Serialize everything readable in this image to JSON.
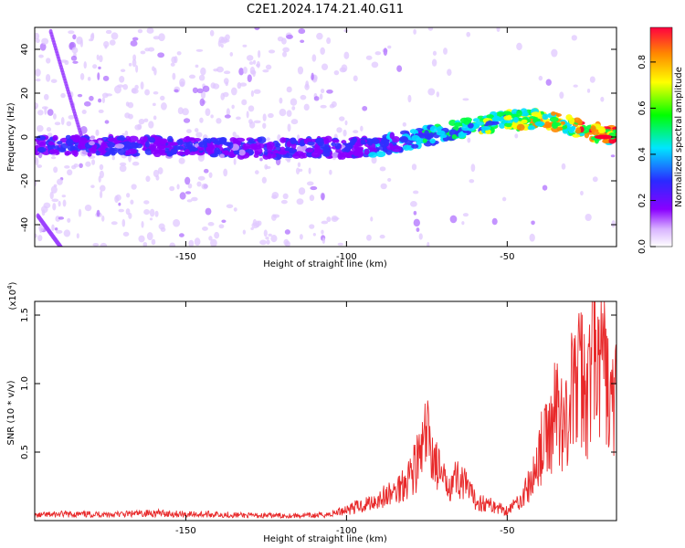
{
  "title": "C2E1.2024.174.21.40.G11",
  "colors": {
    "snr_line": "#e8292a",
    "axis": "#000000"
  },
  "chart_data": [
    {
      "type": "heatmap",
      "xlabel": "Height of straight line (km)",
      "ylabel": "Frequency (Hz)",
      "xlim": [
        -197,
        -16
      ],
      "ylim": [
        -50,
        50
      ],
      "x_ticks": [
        -150,
        -100,
        -50
      ],
      "y_ticks": [
        -40,
        -20,
        0,
        20,
        40
      ],
      "colorbar": {
        "label": "Normalized spectral amplitude",
        "range": [
          0,
          0.95
        ],
        "ticks": [
          0.0,
          0.2,
          0.4,
          0.6,
          0.8
        ]
      },
      "ridge_track": {
        "x": [
          -197,
          -180,
          -160,
          -140,
          -120,
          -100,
          -90,
          -80,
          -70,
          -60,
          -50,
          -40,
          -30,
          -20,
          -16
        ],
        "freq": [
          -4,
          -4,
          -4,
          -5,
          -5,
          -5,
          -4,
          -1,
          2,
          5,
          8,
          8,
          5,
          1,
          0
        ]
      },
      "colorscale": "rainbow"
    },
    {
      "type": "line",
      "xlabel": "Height of straight line (km)",
      "ylabel": "SNR (10 * v/v)",
      "y_exponent_label": "(x10",
      "y_exponent_power": "4",
      "y_exponent_close": ")",
      "xlim": [
        -197,
        -16
      ],
      "ylim": [
        0,
        1.6
      ],
      "x_ticks": [
        -150,
        -100,
        -50
      ],
      "y_ticks": [
        0.5,
        1.0,
        1.5
      ],
      "y_tick_labels": [
        "0.5",
        "1.0",
        "1.5"
      ],
      "series": [
        {
          "x": [
            -197,
            -190,
            -180,
            -170,
            -160,
            -150,
            -140,
            -130,
            -120,
            -110,
            -105,
            -100,
            -95,
            -90,
            -85,
            -80,
            -77,
            -75,
            -73,
            -70,
            -65,
            -60,
            -55,
            -50,
            -47,
            -45,
            -42,
            -40,
            -37,
            -35,
            -32,
            -30,
            -27,
            -25,
            -23,
            -22,
            -20,
            -18,
            -16
          ],
          "y": [
            0.04,
            0.05,
            0.05,
            0.05,
            0.06,
            0.05,
            0.05,
            0.04,
            0.04,
            0.04,
            0.05,
            0.09,
            0.12,
            0.17,
            0.22,
            0.38,
            0.5,
            0.68,
            0.52,
            0.3,
            0.34,
            0.16,
            0.12,
            0.08,
            0.14,
            0.2,
            0.32,
            0.55,
            0.65,
            0.9,
            0.75,
            1.0,
            1.15,
            0.95,
            1.45,
            1.1,
            1.25,
            0.9,
            0.95
          ]
        }
      ]
    }
  ]
}
